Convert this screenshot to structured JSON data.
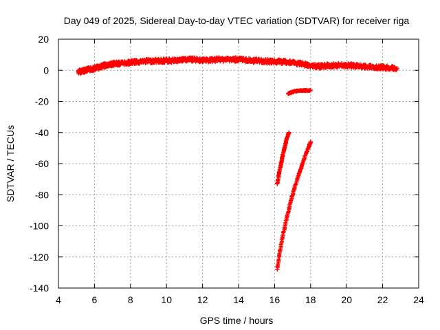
{
  "chart_data": {
    "type": "scatter",
    "title": "Day 049 of 2025, Sidereal Day-to-day VTEC variation (SDTVAR) for receiver riga",
    "xlabel": "GPS time / hours",
    "ylabel": "SDTVAR / TECUs",
    "xlim": [
      4,
      24
    ],
    "ylim": [
      -140,
      20
    ],
    "xticks": [
      4,
      6,
      8,
      10,
      12,
      14,
      16,
      18,
      20,
      22,
      24
    ],
    "yticks": [
      -140,
      -120,
      -100,
      -80,
      -60,
      -40,
      -20,
      0,
      20
    ],
    "grid": true,
    "legend": "none",
    "marker": "plus",
    "color": "#ff0000",
    "series": [
      {
        "points": [
          [
            5.1,
            -1
          ],
          [
            5.3,
            -0.5
          ],
          [
            5.5,
            0
          ],
          [
            5.8,
            0.8
          ],
          [
            6.0,
            1.2
          ],
          [
            6.2,
            1.8
          ],
          [
            6.4,
            2.5
          ],
          [
            6.6,
            3.2
          ],
          [
            6.8,
            3.5
          ],
          [
            7.0,
            4
          ],
          [
            7.3,
            4.3
          ],
          [
            7.6,
            4.6
          ],
          [
            8.0,
            5
          ],
          [
            8.4,
            5.5
          ],
          [
            8.8,
            5.8
          ],
          [
            9.2,
            6
          ],
          [
            9.6,
            6
          ],
          [
            10.0,
            6.2
          ],
          [
            10.4,
            6.2
          ],
          [
            10.8,
            6.5
          ],
          [
            11.2,
            7
          ],
          [
            11.6,
            6.8
          ],
          [
            12.0,
            6.5
          ],
          [
            12.4,
            6.5
          ],
          [
            12.8,
            6.8
          ],
          [
            13.2,
            7
          ],
          [
            13.6,
            7
          ],
          [
            14.0,
            6.8
          ],
          [
            14.4,
            6.5
          ],
          [
            14.8,
            6.2
          ],
          [
            15.2,
            6
          ],
          [
            15.6,
            5.8
          ],
          [
            16.0,
            5.5
          ],
          [
            16.4,
            5.5
          ],
          [
            16.8,
            5.2
          ],
          [
            17.2,
            4.5
          ],
          [
            17.6,
            3.8
          ],
          [
            18.0,
            3
          ],
          [
            18.4,
            2.5
          ],
          [
            18.8,
            2.8
          ],
          [
            19.2,
            3.2
          ],
          [
            19.6,
            3.3
          ],
          [
            20.0,
            3.2
          ],
          [
            20.4,
            3
          ],
          [
            20.8,
            2.6
          ],
          [
            21.2,
            2.3
          ],
          [
            21.6,
            2
          ],
          [
            22.0,
            1.8
          ],
          [
            22.4,
            1.5
          ],
          [
            22.8,
            1.2
          ]
        ]
      },
      {
        "points": [
          [
            16.75,
            -15
          ],
          [
            16.95,
            -14
          ],
          [
            17.2,
            -13.5
          ],
          [
            17.5,
            -13
          ],
          [
            17.7,
            -13
          ],
          [
            18.0,
            -12.8
          ]
        ]
      },
      {
        "points": [
          [
            16.15,
            -73
          ],
          [
            16.25,
            -66
          ],
          [
            16.35,
            -60
          ],
          [
            16.45,
            -55
          ],
          [
            16.55,
            -50
          ],
          [
            16.65,
            -45
          ],
          [
            16.8,
            -40
          ]
        ]
      },
      {
        "points": [
          [
            16.15,
            -128
          ],
          [
            16.3,
            -116
          ],
          [
            16.5,
            -104
          ],
          [
            16.7,
            -94
          ],
          [
            16.9,
            -84
          ],
          [
            17.1,
            -76
          ],
          [
            17.3,
            -68
          ],
          [
            17.5,
            -62
          ],
          [
            17.7,
            -55
          ],
          [
            17.9,
            -49
          ],
          [
            18.0,
            -46
          ]
        ]
      }
    ]
  }
}
